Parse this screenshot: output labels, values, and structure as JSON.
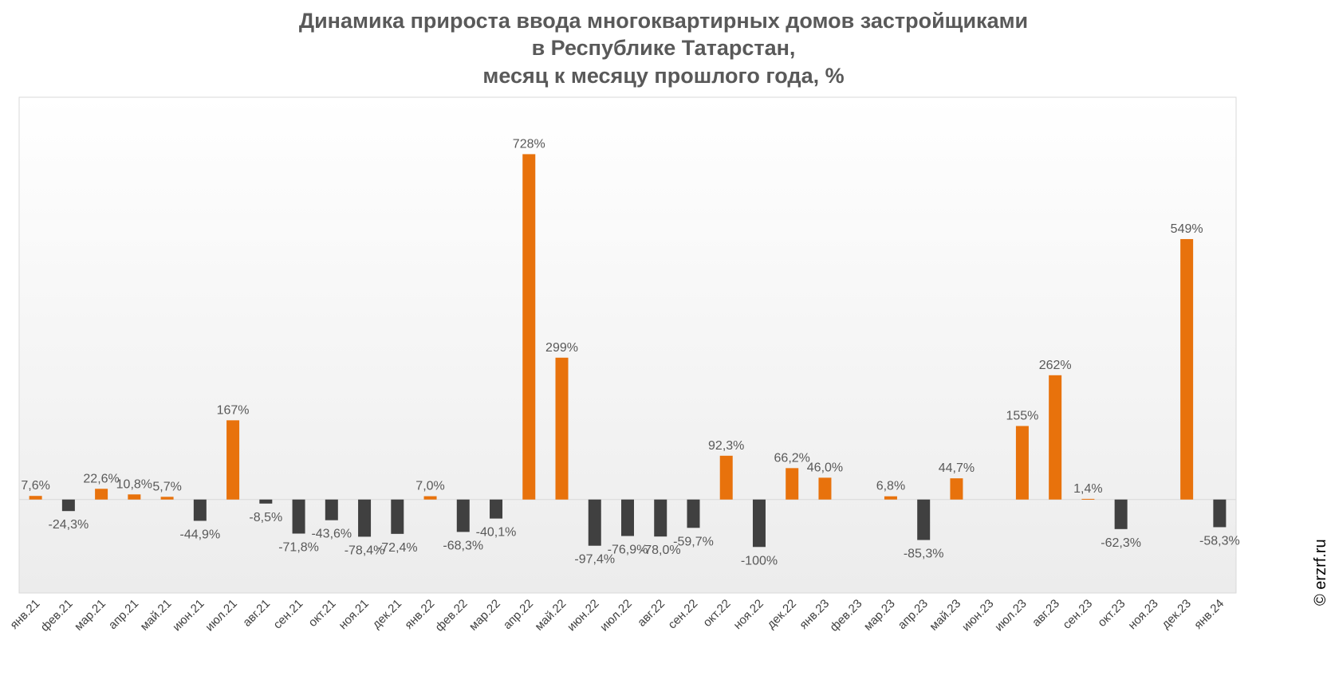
{
  "title": {
    "line1": "Динамика прироста ввода многоквартирных домов застройщиками",
    "line2": "в Республике Татарстан,",
    "line3": "месяц к месяцу прошлого года, %"
  },
  "copyright": "© erzrf.ru",
  "colors": {
    "positive": "#E8720C",
    "negative": "#404040",
    "label": "#595959",
    "axis_text": "#404040",
    "frame": "#D9D9D9"
  },
  "chart_data": {
    "type": "bar",
    "title": "Динамика прироста ввода многоквартирных домов застройщиками в Республике Татарстан, месяц к месяцу прошлого года, %",
    "ylim": [
      -197,
      848
    ],
    "grid": false,
    "legend": "none",
    "categories": [
      "янв.21",
      "фев.21",
      "мар.21",
      "апр.21",
      "май.21",
      "июн.21",
      "июл.21",
      "авг.21",
      "сен.21",
      "окт.21",
      "ноя.21",
      "дек.21",
      "янв.22",
      "фев.22",
      "мар.22",
      "апр.22",
      "май.22",
      "июн.22",
      "июл.22",
      "авг.22",
      "сен.22",
      "окт.22",
      "ноя.22",
      "дек.22",
      "янв.23",
      "фев.23",
      "мар.23",
      "апр.23",
      "май.23",
      "июн.23",
      "июл.23",
      "авг.23",
      "сен.23",
      "окт.23",
      "ноя.23",
      "дек.23",
      "янв.24"
    ],
    "values": [
      7.6,
      -24.3,
      22.6,
      10.8,
      5.7,
      -44.9,
      167,
      -8.5,
      -71.8,
      -43.6,
      -78.4,
      -72.4,
      7.0,
      -68.3,
      -40.1,
      728,
      299,
      -97.4,
      -76.9,
      -78.0,
      -59.7,
      92.3,
      -100,
      66.2,
      46.0,
      null,
      6.8,
      -85.3,
      44.7,
      null,
      155,
      262,
      1.4,
      -62.3,
      null,
      549,
      -58.3
    ],
    "labels": [
      "7,6%",
      "-24,3%",
      "22,6%",
      "10,8%",
      "5,7%",
      "-44,9%",
      "167%",
      "-8,5%",
      "-71,8%",
      "-43,6%",
      "-78,4%",
      "-72,4%",
      "7,0%",
      "-68,3%",
      "-40,1%",
      "728%",
      "299%",
      "-97,4%",
      "-76,9%",
      "-78,0%",
      "-59,7%",
      "92,3%",
      "-100%",
      "66,2%",
      "46,0%",
      "",
      "6,8%",
      "-85,3%",
      "44,7%",
      "",
      "155%",
      "262%",
      "1,4%",
      "-62,3%",
      "",
      "549%",
      "-58,3%"
    ]
  }
}
